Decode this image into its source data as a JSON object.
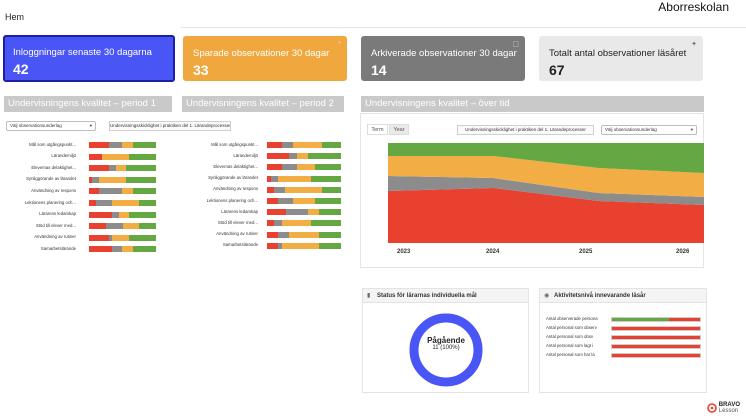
{
  "header": {
    "home": "Hem",
    "school": "Aborreskolan"
  },
  "stats": [
    {
      "title": "Inloggningar senaste 30 dagarna",
      "value": "42",
      "bg": "#4a55f5",
      "fg": "#ffffff",
      "border": "#1c1fa3"
    },
    {
      "title": "Sparade observationer 30 dagar",
      "value": "33",
      "bg": "#f0a83e",
      "fg": "#ffffff",
      "border": "#f0a83e"
    },
    {
      "title": "Arkiverade observationer 30 dagar",
      "value": "14",
      "bg": "#7a7a7a",
      "fg": "#ffffff",
      "border": "#7a7a7a"
    },
    {
      "title": "Totalt antal observationer läsåret",
      "value": "67",
      "bg": "#e9e9e9",
      "fg": "#222222",
      "border": "#e9e9e9"
    }
  ],
  "sections": {
    "period1": "Undervisningens kvalitet – period 1",
    "period2": "Undervisningens kvalitet – period 2",
    "overtime": "Undervisningens kvalitet – över tid"
  },
  "controls": {
    "select_basis": "Välj observationsunderlag",
    "button_criteria": "Undervisningsskicklighet i praktiken del 1. Lärandeprocesser"
  },
  "colors": {
    "red": "#e8412f",
    "gray": "#8c8c8c",
    "orange": "#f2ad45",
    "green": "#65a843"
  },
  "period1_rows": [
    {
      "label": "Mål som utgångspunkt...",
      "red": 0.3,
      "gray": 0.2,
      "orange": 0.15,
      "green": 0.35
    },
    {
      "label": "Lärandemiljö",
      "red": 0.2,
      "gray": 0.0,
      "orange": 0.4,
      "green": 0.4
    },
    {
      "label": "Elevernas delaktighet...",
      "red": 0.3,
      "gray": 0.1,
      "orange": 0.15,
      "green": 0.45
    },
    {
      "label": "Synliggörande av lärandet",
      "red": 0.05,
      "gray": 0.1,
      "orange": 0.4,
      "green": 0.45
    },
    {
      "label": "Användning av respons",
      "red": 0.15,
      "gray": 0.35,
      "orange": 0.15,
      "green": 0.35
    },
    {
      "label": "Lektionens planering och...",
      "red": 0.1,
      "gray": 0.25,
      "orange": 0.4,
      "green": 0.25
    },
    {
      "label": "Lärarens ledarskap",
      "red": 0.35,
      "gray": 0.1,
      "orange": 0.15,
      "green": 0.4
    },
    {
      "label": "Stöd till elever med...",
      "red": 0.25,
      "gray": 0.25,
      "orange": 0.25,
      "green": 0.25
    },
    {
      "label": "Användning av rutiner",
      "red": 0.3,
      "gray": 0.05,
      "orange": 0.25,
      "green": 0.4
    },
    {
      "label": "Samarbetslärande",
      "red": 0.35,
      "gray": 0.15,
      "orange": 0.15,
      "green": 0.35
    }
  ],
  "period2_rows": [
    {
      "label": "Mål som utgångspunkt...",
      "red": 0.2,
      "gray": 0.15,
      "orange": 0.4,
      "green": 0.25
    },
    {
      "label": "Lärandemiljö",
      "red": 0.3,
      "gray": 0.1,
      "orange": 0.15,
      "green": 0.45
    },
    {
      "label": "Elevernas delaktighet...",
      "red": 0.2,
      "gray": 0.2,
      "orange": 0.25,
      "green": 0.35
    },
    {
      "label": "Synliggörande av lärandet",
      "red": 0.05,
      "gray": 0.1,
      "orange": 0.45,
      "green": 0.4
    },
    {
      "label": "Användning av respons",
      "red": 0.1,
      "gray": 0.15,
      "orange": 0.5,
      "green": 0.25
    },
    {
      "label": "Lektionens planering och...",
      "red": 0.15,
      "gray": 0.2,
      "orange": 0.3,
      "green": 0.35
    },
    {
      "label": "Lärarens ledarskap",
      "red": 0.25,
      "gray": 0.3,
      "orange": 0.15,
      "green": 0.3
    },
    {
      "label": "Stöd till elever med...",
      "red": 0.1,
      "gray": 0.1,
      "orange": 0.4,
      "green": 0.4
    },
    {
      "label": "Användning av rutiner",
      "red": 0.15,
      "gray": 0.15,
      "orange": 0.4,
      "green": 0.3
    },
    {
      "label": "Samarbetslärande",
      "red": 0.15,
      "gray": 0.05,
      "orange": 0.5,
      "green": 0.3
    }
  ],
  "overtime": {
    "tabs": [
      "Term",
      "Year"
    ],
    "active_tab": "Year",
    "select_criteria": "Undervisningsskicklighet i praktiken del 1. Lärandeprocesser",
    "select_basis": "Välj observationsunderlag"
  },
  "chart_data": {
    "type": "area",
    "stacked": true,
    "normalized": true,
    "x": [
      "2023",
      "2024",
      "2025",
      "2026"
    ],
    "series": [
      {
        "values": [
          0.52,
          0.55,
          0.42,
          0.38
        ],
        "color": "#e8412f"
      },
      {
        "values": [
          0.15,
          0.1,
          0.08,
          0.08
        ],
        "color": "#8c8c8c"
      },
      {
        "values": [
          0.2,
          0.22,
          0.25,
          0.24
        ],
        "color": "#f2ad45"
      },
      {
        "values": [
          0.13,
          0.13,
          0.25,
          0.3
        ],
        "color": "#65a843"
      }
    ],
    "ylim": [
      0,
      1
    ],
    "grid": false,
    "legend": "none"
  },
  "goals_widget": {
    "title": "Status för lärarnas individuella mål",
    "center_label": "Pågående",
    "center_value": "11 (100%)",
    "progress": 1.0,
    "ring_color": "#4a55f5"
  },
  "activity_widget": {
    "title": "Aktivitetsnivå innevarande läsår",
    "rows": [
      {
        "label": "Antal observerade persona",
        "green": 0.65,
        "red": 0.35
      },
      {
        "label": "Antal personal som observ",
        "green": 0.0,
        "red": 1.0
      },
      {
        "label": "Antal personal som obsv",
        "green": 0.0,
        "red": 1.0
      },
      {
        "label": "Antal personal som lagt i",
        "green": 0.0,
        "red": 1.0
      },
      {
        "label": "Antal personal som har la",
        "green": 0.0,
        "red": 1.0
      }
    ]
  },
  "logo": {
    "line1": "BRAVO",
    "line2": "Lesson"
  }
}
